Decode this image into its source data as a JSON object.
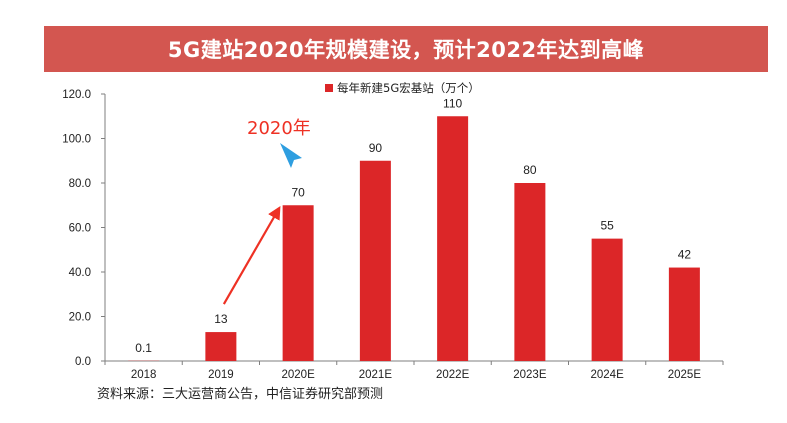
{
  "banner": {
    "title": "5G建站2020年规模建设，预计2022年达到高峰"
  },
  "colors": {
    "banner_bg": "#d35650",
    "bar": "#dc2628",
    "annotation": "#ee3124",
    "marker": "#2e9ee0"
  },
  "chart_data": {
    "type": "bar",
    "categories": [
      "2018",
      "2019",
      "2020E",
      "2021E",
      "2022E",
      "2023E",
      "2024E",
      "2025E"
    ],
    "series": [
      {
        "name": "每年新建5G宏基站（万个）",
        "values": [
          0.1,
          13,
          70,
          90,
          110,
          80,
          55,
          42
        ]
      }
    ],
    "value_labels": [
      "0.1",
      "13",
      "70",
      "90",
      "110",
      "80",
      "55",
      "42"
    ],
    "yticks": [
      "0.0",
      "20.0",
      "40.0",
      "60.0",
      "80.0",
      "100.0",
      "120.0"
    ],
    "ylim": [
      0,
      120
    ],
    "title": "",
    "xlabel": "",
    "ylabel": "",
    "legend_position": "top-center",
    "grid": false,
    "annotation": {
      "text": "2020年",
      "target_category": "2020E"
    }
  },
  "footer": {
    "source": "资料来源：三大运营商公告，中信证券研究部预测"
  }
}
